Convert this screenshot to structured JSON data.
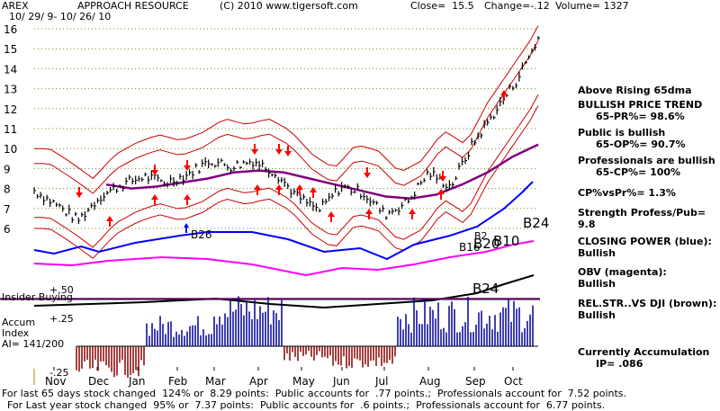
{
  "header": {
    "ticker": "AREX",
    "company": "APPROACH RESOURCE",
    "copyright": "(C) 2010 www.tigersoft.com",
    "close": "Close=  15.5",
    "change": "Change=-.12",
    "volume": "Volume= 1327",
    "date_range": "10/ 29/ 9- 10/ 26/ 10"
  },
  "side_panel": {
    "above_ma": "Above Rising 65dma",
    "trend_title": "BULLISH PRICE TREND",
    "trend_value": "65-PR%= 98.6%",
    "public_title": "Public is bullish",
    "public_value": "65-OP%= 90.7%",
    "pros_title": "Professionals are bullish",
    "pros_value": "65-CP%= 100%",
    "cp_vs_pr": "CP%vsPr%=  1.3%",
    "strength": "Strength Profess/Pub= 9.8",
    "closing_power_title": "CLOSING POWER (blue):",
    "closing_power_value": "Bullish",
    "obv_title": "OBV (magenta):",
    "obv_value": "Bullish",
    "relstr_title": "REL.STR..VS DJI (brown):",
    "relstr_value": "Bullish",
    "accum_title": "Currently Accumulation",
    "accum_value": "IP=  .086"
  },
  "lower_panel": {
    "insider_label": "Insider Buying",
    "accum_label": "Accum",
    "index_label": "Index",
    "ai_label": "AI= 141/200",
    "plus50": "+.50",
    "plus25": "+.25",
    "minus25": "-.25"
  },
  "signals": {
    "b26": "B26",
    "b24_top": "B24",
    "b24_mid": "B24",
    "b16": "B16",
    "b20": "B20",
    "b10": "B10",
    "b2": "B2"
  },
  "footer": {
    "line1": "For last 65 days stock changed  124% or  8.29 points:  Public accounts for  .77 points.;  Professionals account for  7.52 points.",
    "line2": "For Last year stock changed  95% or  7.37 points:  Public accounts for  .6 points.;  Professionals account for  6.77 points."
  },
  "chart_data": {
    "type": "line",
    "title": "APPROACH RESOURCE",
    "y_ticks": [
      "16",
      "15",
      "14",
      "13",
      "12",
      "11",
      "10",
      "9",
      "8",
      "7",
      "6"
    ],
    "ylim": [
      5.5,
      16.3
    ],
    "x_months": [
      "Nov",
      "Dec",
      "Jan",
      "Feb",
      "Mar",
      "Apr",
      "May",
      "Jun",
      "Jul",
      "Aug",
      "Sep",
      "Oct"
    ],
    "grid": true,
    "price_series": [
      {
        "x": "Nov",
        "y": 7.9
      },
      {
        "x": "Nov",
        "y": 7.2
      },
      {
        "x": "Dec",
        "y": 6.4
      },
      {
        "x": "Dec",
        "y": 7.6
      },
      {
        "x": "Jan",
        "y": 8.2
      },
      {
        "x": "Jan",
        "y": 8.6
      },
      {
        "x": "Feb",
        "y": 8.3
      },
      {
        "x": "Feb",
        "y": 8.7
      },
      {
        "x": "Mar",
        "y": 9.4
      },
      {
        "x": "Mar",
        "y": 9.1
      },
      {
        "x": "Apr",
        "y": 9.4
      },
      {
        "x": "Apr",
        "y": 8.8
      },
      {
        "x": "May",
        "y": 7.6
      },
      {
        "x": "May",
        "y": 6.9
      },
      {
        "x": "Jun",
        "y": 8.1
      },
      {
        "x": "Jun",
        "y": 7.8
      },
      {
        "x": "Jul",
        "y": 6.7
      },
      {
        "x": "Jul",
        "y": 7.3
      },
      {
        "x": "Aug",
        "y": 8.8
      },
      {
        "x": "Aug",
        "y": 8.1
      },
      {
        "x": "Sep",
        "y": 10.2
      },
      {
        "x": "Sep",
        "y": 11.8
      },
      {
        "x": "Oct",
        "y": 13.4
      },
      {
        "x": "Oct",
        "y": 15.5
      }
    ],
    "ma65_series": [
      8.2,
      8.0,
      8.1,
      8.3,
      8.5,
      8.8,
      8.9,
      8.8,
      8.5,
      8.2,
      7.9,
      7.6,
      7.5,
      7.7,
      8.2,
      8.8,
      9.6,
      10.2
    ],
    "closing_power": "Bullish",
    "obv": "Bullish",
    "rel_str": "Bullish",
    "accumulation_index": "141/200",
    "series_colors": {
      "price": "#000000",
      "ma": "#800080",
      "bands": "#cc0000",
      "closing_power": "#0000ff",
      "obv": "#ff00ff",
      "accum_pos": "#000099",
      "accum_neg": "#8b0000",
      "arrows": "#ff0000"
    }
  }
}
